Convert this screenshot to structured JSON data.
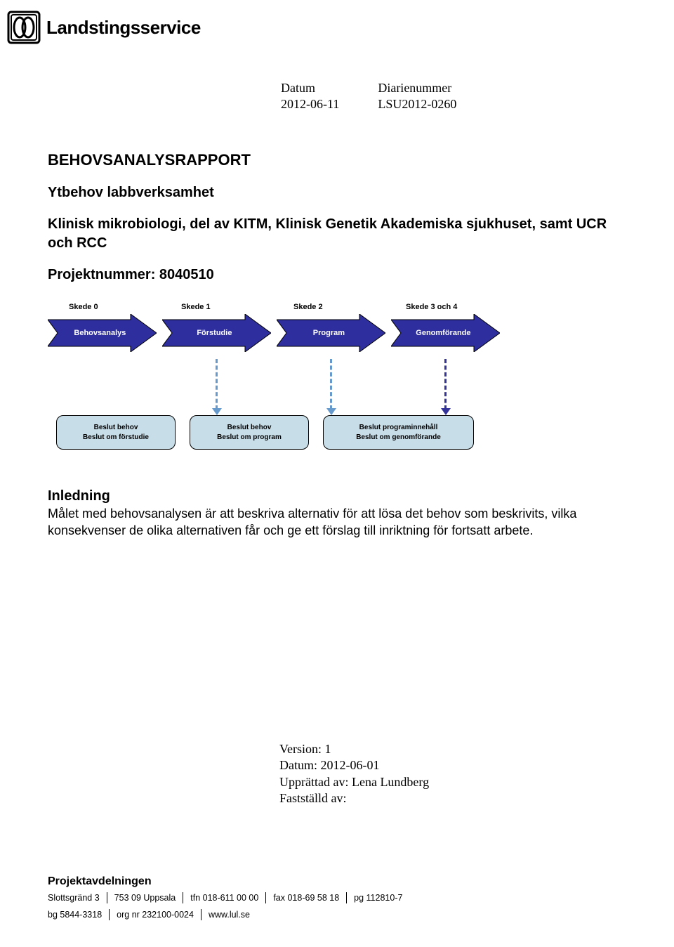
{
  "logo": {
    "text": "Landstingsservice"
  },
  "header": {
    "datum_label": "Datum",
    "datum_value": "2012-06-11",
    "diarie_label": "Diarienummer",
    "diarie_value": "LSU2012-0260"
  },
  "title": "BEHOVSANALYSRAPPORT",
  "subtitle1": "Ytbehov labbverksamhet",
  "subtitle2": "Klinisk mikrobiologi, del av KITM, Klinisk Genetik Akademiska sjukhuset, samt UCR och RCC",
  "project_num": "Projektnummer: 8040510",
  "diagram": {
    "skede_labels": [
      "Skede 0",
      "Skede 1",
      "Skede 2",
      "Skede 3 och 4"
    ],
    "arrows": [
      "Behovsanalys",
      "Förstudie",
      "Program",
      "Genomförande"
    ],
    "arrow_fill": "#2e2e9e",
    "arrow_stroke": "#000000",
    "dash_colors": [
      "#6699cc",
      "#6699cc",
      "#333399"
    ],
    "box_bg": "#c7dde8",
    "boxes": [
      {
        "size": "small",
        "line1": "Beslut behov",
        "line2": "Beslut om förstudie"
      },
      {
        "size": "small",
        "line1": "Beslut behov",
        "line2": "Beslut om program"
      },
      {
        "size": "large",
        "line1": "Beslut programinnehåll",
        "line2": "Beslut om genomförande"
      }
    ]
  },
  "inledning": {
    "heading": "Inledning",
    "body": "Målet med behovsanalysen är att beskriva alternativ för att lösa det behov som beskrivits, vilka konsekvenser de olika alternativen får och ge ett förslag till inriktning för fortsatt arbete."
  },
  "version": {
    "line1": "Version: 1",
    "line2": "Datum: 2012-06-01",
    "line3": "Upprättad av: Lena Lundberg",
    "line4": "Fastställd av:"
  },
  "footer": {
    "title": "Projektavdelningen",
    "row1": [
      "Slottsgränd 3",
      "753 09 Uppsala",
      "tfn 018-611 00 00",
      "fax 018-69 58 18",
      "pg 112810-7"
    ],
    "row2": [
      "bg 5844-3318",
      "org nr 232100-0024",
      "www.lul.se"
    ]
  }
}
